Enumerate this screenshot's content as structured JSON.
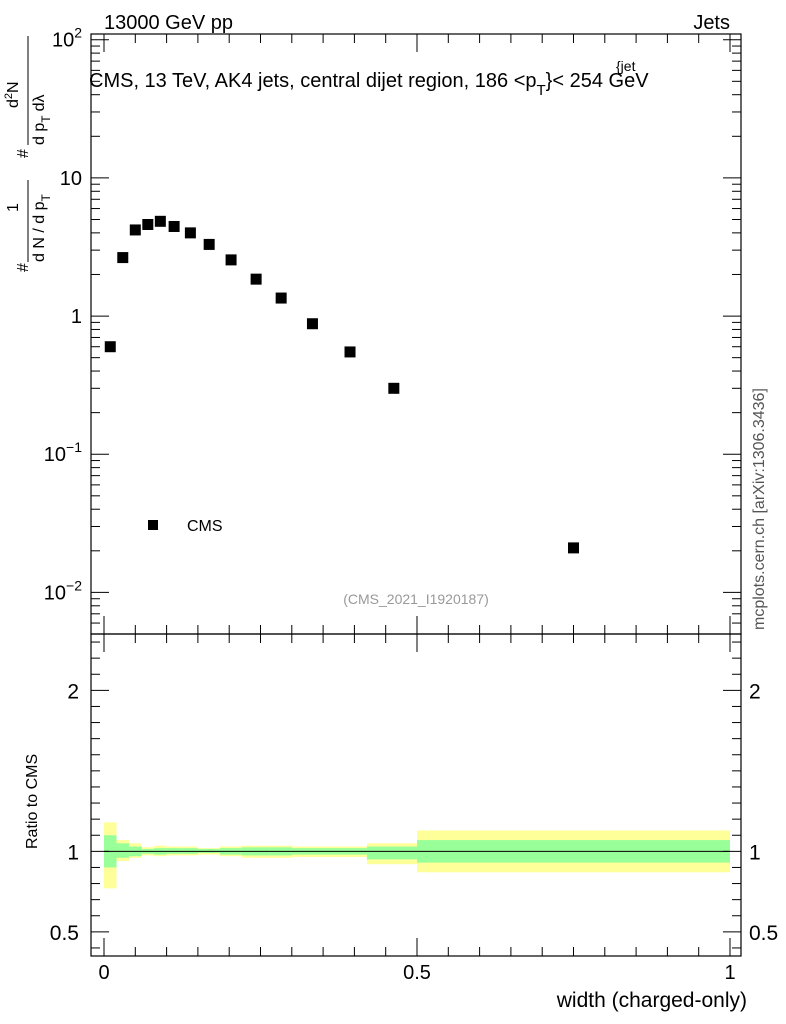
{
  "header": {
    "left": "13000 GeV pp",
    "right": "Jets"
  },
  "side_label": "mcplots.cern.ch [arXiv:1306.3436]",
  "analysis_ref": "(CMS_2021_I1920187)",
  "title": {
    "main": "CMS, 13 TeV, AK4 jets, central dijet region, 186 <p",
    "sub": "T",
    "sup": "{jet",
    "end": "}< 254 GeV"
  },
  "y_axis_label": {
    "hash": "#",
    "frac_top": "1",
    "frac_bottom": "d N / d p",
    "frac_bottom_sub": "T",
    "hash2": "#",
    "frac2_top": "d",
    "frac2_top_sup": "2",
    "frac2_top_end": "N",
    "frac2_bottom": "d p",
    "frac2_bottom_sub": "T",
    "frac2_bottom_end": "dλ"
  },
  "x_axis_label": "width (charged-only)",
  "ratio_y_label": "Ratio to CMS",
  "legend": {
    "entry": "CMS",
    "color": "#000000"
  },
  "colors": {
    "band_outer": "#ffff99",
    "band_inner": "#99ff99",
    "marker": "#000000",
    "ref_text": "#999999"
  },
  "chart_data": [
    {
      "type": "scatter",
      "panel": "main",
      "yscale": "log",
      "xlim": [
        -0.02,
        1.02
      ],
      "ylim": [
        0.005,
        110
      ],
      "y_ticks": [
        {
          "base": "10",
          "exp": "2",
          "value": 100
        },
        {
          "base": "10",
          "exp": "",
          "value": 10
        },
        {
          "base": "1",
          "exp": "",
          "value": 1
        },
        {
          "base": "10",
          "exp": "−1",
          "value": 0.1
        },
        {
          "base": "10",
          "exp": "−2",
          "value": 0.01
        }
      ],
      "series": [
        {
          "name": "CMS",
          "x": [
            0.01,
            0.03,
            0.05,
            0.07,
            0.09,
            0.112,
            0.138,
            0.168,
            0.203,
            0.243,
            0.283,
            0.333,
            0.393,
            0.463,
            0.75
          ],
          "y": [
            0.6,
            2.65,
            4.2,
            4.6,
            4.85,
            4.45,
            4.0,
            3.3,
            2.55,
            1.85,
            1.35,
            0.88,
            0.55,
            0.3,
            0.021
          ]
        }
      ]
    },
    {
      "type": "area",
      "panel": "ratio",
      "xlim": [
        -0.02,
        1.02
      ],
      "ylim": [
        0.35,
        2.35
      ],
      "x_ticks": [
        "0",
        "0.5",
        "1"
      ],
      "y_ticks": [
        "0.5",
        "1",
        "2"
      ],
      "reference_line": 1,
      "bins": [
        {
          "lo": 0.0,
          "hi": 0.02,
          "inner": [
            0.9,
            1.1
          ],
          "outer": [
            0.77,
            1.18
          ]
        },
        {
          "lo": 0.02,
          "hi": 0.04,
          "inner": [
            0.96,
            1.05
          ],
          "outer": [
            0.94,
            1.07
          ]
        },
        {
          "lo": 0.04,
          "hi": 0.06,
          "inner": [
            0.97,
            1.03
          ],
          "outer": [
            0.96,
            1.05
          ]
        },
        {
          "lo": 0.06,
          "hi": 0.08,
          "inner": [
            0.985,
            1.015
          ],
          "outer": [
            0.975,
            1.025
          ]
        },
        {
          "lo": 0.08,
          "hi": 0.1,
          "inner": [
            0.98,
            1.02
          ],
          "outer": [
            0.97,
            1.035
          ]
        },
        {
          "lo": 0.1,
          "hi": 0.125,
          "inner": [
            0.985,
            1.02
          ],
          "outer": [
            0.975,
            1.03
          ]
        },
        {
          "lo": 0.125,
          "hi": 0.15,
          "inner": [
            0.985,
            1.02
          ],
          "outer": [
            0.975,
            1.03
          ]
        },
        {
          "lo": 0.15,
          "hi": 0.185,
          "inner": [
            0.99,
            1.015
          ],
          "outer": [
            0.98,
            1.02
          ]
        },
        {
          "lo": 0.185,
          "hi": 0.22,
          "inner": [
            0.98,
            1.02
          ],
          "outer": [
            0.97,
            1.03
          ]
        },
        {
          "lo": 0.22,
          "hi": 0.265,
          "inner": [
            0.975,
            1.025
          ],
          "outer": [
            0.96,
            1.035
          ]
        },
        {
          "lo": 0.265,
          "hi": 0.3,
          "inner": [
            0.975,
            1.025
          ],
          "outer": [
            0.96,
            1.035
          ]
        },
        {
          "lo": 0.3,
          "hi": 0.365,
          "inner": [
            0.98,
            1.02
          ],
          "outer": [
            0.965,
            1.03
          ]
        },
        {
          "lo": 0.365,
          "hi": 0.42,
          "inner": [
            0.98,
            1.02
          ],
          "outer": [
            0.965,
            1.03
          ]
        },
        {
          "lo": 0.42,
          "hi": 0.5,
          "inner": [
            0.95,
            1.03
          ],
          "outer": [
            0.92,
            1.05
          ]
        },
        {
          "lo": 0.5,
          "hi": 1.0,
          "inner": [
            0.93,
            1.07
          ],
          "outer": [
            0.87,
            1.13
          ]
        }
      ]
    }
  ]
}
